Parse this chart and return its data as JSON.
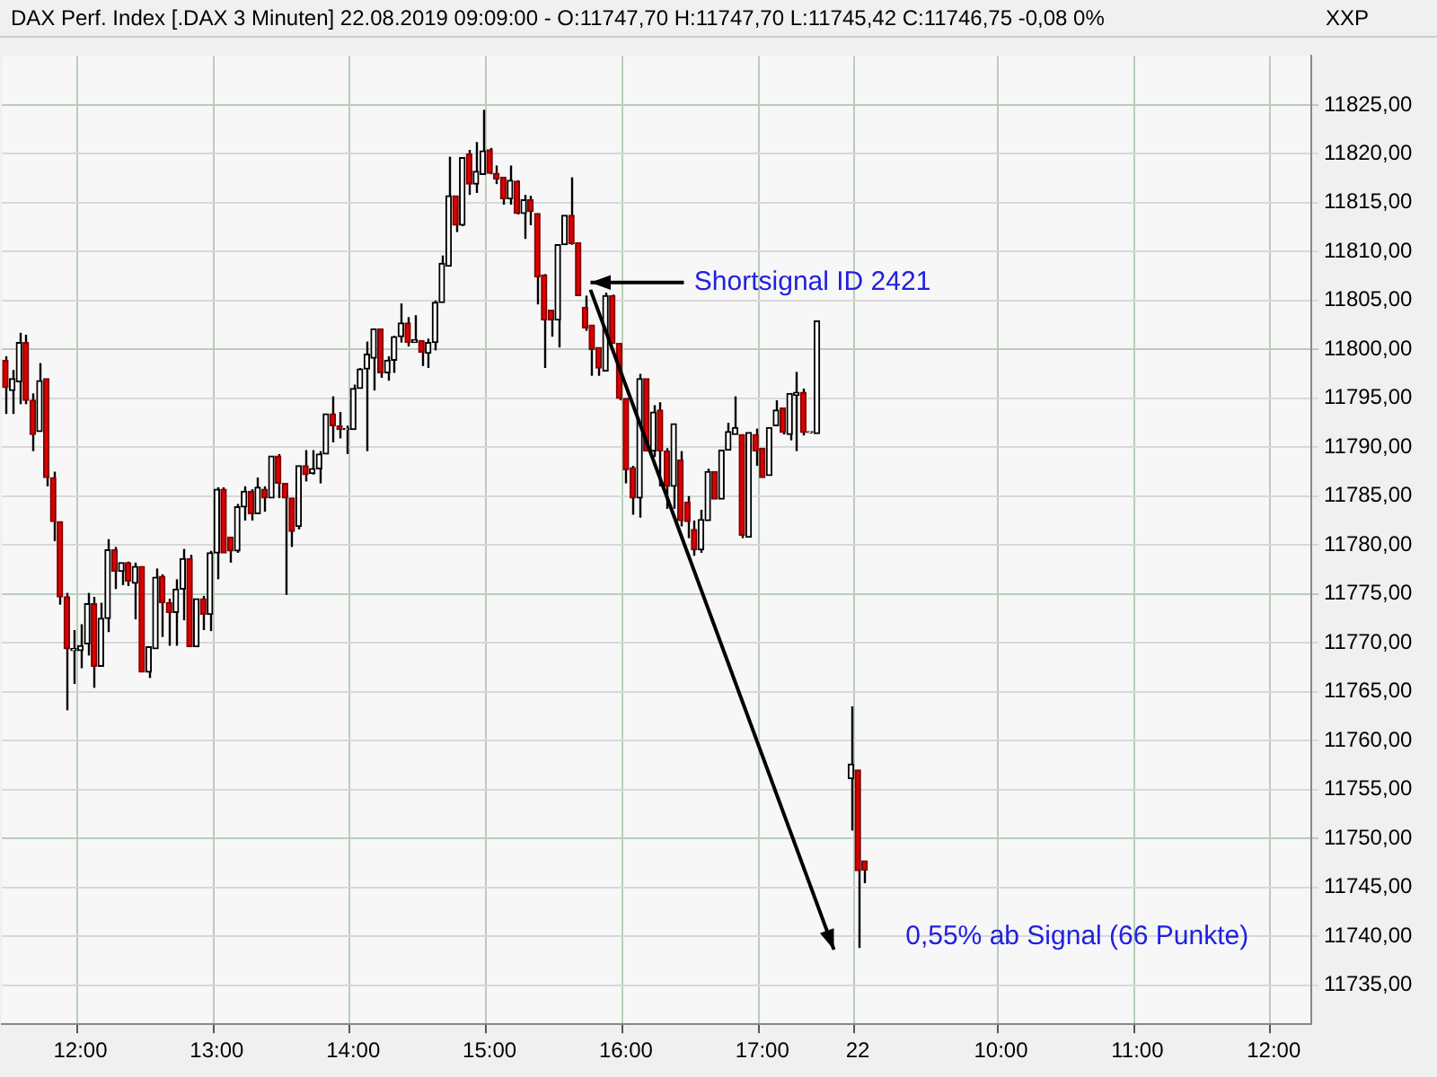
{
  "chart_data": {
    "type": "candlestick",
    "title": "DAX Perf. Index [.DAX  3 Minuten] 22.08.2019 09:09:00 - O:11747,70 H:11747,70 L:11745,42 C:11746,75 -0,08 0%",
    "categories": [
      null,
      null,
      null,
      null,
      null,
      null,
      null,
      null,
      null,
      null,
      null,
      "12:00",
      null,
      null,
      null,
      null,
      null,
      null,
      null,
      null,
      null,
      null,
      null,
      null,
      null,
      null,
      null,
      null,
      null,
      null,
      null,
      "13:00",
      null,
      null,
      null,
      null,
      null,
      null,
      null,
      null,
      null,
      null,
      null,
      null,
      null,
      null,
      null,
      null,
      null,
      null,
      null,
      "14:00",
      null,
      null,
      null,
      null,
      null,
      null,
      null,
      null,
      null,
      null,
      null,
      null,
      null,
      null,
      null,
      null,
      null,
      null,
      null,
      "15:00",
      null,
      null,
      null,
      null,
      null,
      null,
      null,
      null,
      null,
      null,
      null,
      null,
      null,
      null,
      null,
      null,
      null,
      null,
      null,
      "16:00",
      null,
      null,
      null,
      null,
      null,
      null,
      null,
      null,
      null,
      null,
      null,
      null,
      null,
      null,
      null,
      null,
      null,
      null,
      null,
      "17:00",
      null,
      null,
      null,
      null,
      null,
      null,
      null,
      null,
      null,
      null,
      null,
      null,
      null,
      "22",
      null,
      null,
      null,
      null,
      null,
      null,
      null,
      null,
      null,
      null,
      null,
      null,
      null,
      null,
      null,
      null,
      null,
      null,
      null,
      null,
      "10:00",
      null,
      null,
      null,
      null,
      null,
      null,
      null,
      null,
      null,
      null,
      null,
      null,
      null,
      null,
      null,
      null,
      null,
      null,
      null,
      "11:00",
      null,
      null,
      null,
      null,
      null,
      null,
      null,
      null,
      null,
      null,
      null,
      null,
      null,
      null,
      null,
      null,
      null,
      null,
      null,
      "12:00",
      null,
      null,
      null,
      null,
      null
    ],
    "ohlc": [
      [
        11798.9,
        11799.3,
        11793.4,
        11796.1
      ],
      [
        11795.8,
        11797.9,
        11793.4,
        11797.0
      ],
      [
        11796.7,
        11801.7,
        11794.4,
        11800.7
      ],
      [
        11800.7,
        11801.5,
        11794.4,
        11794.8
      ],
      [
        11794.8,
        11795.5,
        11789.6,
        11791.3
      ],
      [
        11791.6,
        11798.6,
        11791.6,
        11796.8
      ],
      [
        11797.0,
        11797.0,
        11786.0,
        11786.9
      ],
      [
        11786.9,
        11787.5,
        11780.4,
        11782.4
      ],
      [
        11782.4,
        11782.4,
        11773.9,
        11774.7
      ],
      [
        11774.7,
        11775.1,
        11763.1,
        11769.4
      ],
      [
        11769.2,
        11771.3,
        11765.8,
        11769.4
      ],
      [
        11769.2,
        11771.9,
        11767.4,
        11769.7
      ],
      [
        11769.9,
        11775.1,
        11768.7,
        11774.0
      ],
      [
        11774.0,
        11774.7,
        11765.4,
        11767.6
      ],
      [
        11767.6,
        11774.1,
        11767.6,
        11772.5
      ],
      [
        11772.5,
        11780.6,
        11771.1,
        11779.5
      ],
      [
        11779.5,
        11779.8,
        11775.5,
        11777.3
      ],
      [
        11777.3,
        11778.2,
        11775.9,
        11778.2
      ],
      [
        11778.2,
        11778.3,
        11775.8,
        11776.3
      ],
      [
        11776.1,
        11778.2,
        11772.4,
        11777.8
      ],
      [
        11777.8,
        11777.8,
        11767.0,
        11767.0
      ],
      [
        11767.0,
        11769.6,
        11766.4,
        11769.6
      ],
      [
        11769.4,
        11777.6,
        11769.4,
        11776.7
      ],
      [
        11776.8,
        11777.0,
        11770.6,
        11774.1
      ],
      [
        11774.1,
        11774.5,
        11769.7,
        11773.1
      ],
      [
        11773.1,
        11776.5,
        11769.7,
        11775.5
      ],
      [
        11775.5,
        11779.6,
        11772.3,
        11778.6
      ],
      [
        11778.6,
        11779.0,
        11769.6,
        11769.6
      ],
      [
        11769.6,
        11774.5,
        11769.6,
        11774.5
      ],
      [
        11774.5,
        11774.8,
        11771.3,
        11772.9
      ],
      [
        11772.9,
        11779.4,
        11771.2,
        11779.2
      ],
      [
        11779.2,
        11785.9,
        11776.5,
        11785.7
      ],
      [
        11785.7,
        11785.9,
        11779.2,
        11779.2
      ],
      [
        11780.8,
        11780.8,
        11778.2,
        11779.4
      ],
      [
        11779.4,
        11784.2,
        11779.2,
        11783.9
      ],
      [
        11783.9,
        11786.0,
        11782.5,
        11785.5
      ],
      [
        11785.5,
        11785.7,
        11782.5,
        11783.2
      ],
      [
        11783.2,
        11786.9,
        11783.2,
        11785.9
      ],
      [
        11785.7,
        11786.0,
        11783.4,
        11784.8
      ],
      [
        11784.8,
        11789.1,
        11784.8,
        11789.1
      ],
      [
        11789.1,
        11789.3,
        11784.8,
        11786.3
      ],
      [
        11786.3,
        11786.3,
        11774.9,
        11784.8
      ],
      [
        11784.8,
        11784.8,
        11779.8,
        11781.4
      ],
      [
        11781.9,
        11788.1,
        11781.6,
        11788.1
      ],
      [
        11788.1,
        11789.7,
        11786.5,
        11787.2
      ],
      [
        11787.3,
        11789.7,
        11787.2,
        11787.8
      ],
      [
        11787.8,
        11789.6,
        11786.3,
        11789.3
      ],
      [
        11789.3,
        11793.4,
        11789.3,
        11793.4
      ],
      [
        11793.4,
        11795.2,
        11790.5,
        11792.2
      ],
      [
        11792.2,
        11793.6,
        11790.9,
        11791.8
      ],
      [
        11791.8,
        11792.2,
        11789.3,
        11791.9
      ],
      [
        11791.8,
        11796.4,
        11791.8,
        11796.0
      ],
      [
        11796.0,
        11798.1,
        11796.0,
        11798.0
      ],
      [
        11798.0,
        11800.8,
        11789.6,
        11799.5
      ],
      [
        11799.1,
        11802.1,
        11795.8,
        11802.1
      ],
      [
        11802.1,
        11802.1,
        11797.1,
        11797.6
      ],
      [
        11797.6,
        11799.3,
        11796.8,
        11798.9
      ],
      [
        11798.9,
        11801.4,
        11797.6,
        11801.3
      ],
      [
        11801.3,
        11804.7,
        11800.7,
        11802.7
      ],
      [
        11802.7,
        11803.3,
        11800.3,
        11800.7
      ],
      [
        11800.7,
        11803.5,
        11800.7,
        11801.0
      ],
      [
        11800.9,
        11800.9,
        11798.3,
        11799.7
      ],
      [
        11799.6,
        11801.1,
        11798.1,
        11800.7
      ],
      [
        11800.7,
        11805.0,
        11799.9,
        11804.8
      ],
      [
        11804.8,
        11809.6,
        11804.8,
        11808.8
      ],
      [
        11808.5,
        11819.7,
        11808.5,
        11815.7
      ],
      [
        11815.7,
        11815.7,
        11812.0,
        11812.7
      ],
      [
        11812.7,
        11819.6,
        11812.6,
        11819.6
      ],
      [
        11820.0,
        11820.4,
        11815.8,
        11816.9
      ],
      [
        11816.9,
        11821.2,
        11816.0,
        11818.2
      ],
      [
        11817.9,
        11824.5,
        11817.9,
        11820.3
      ],
      [
        11820.4,
        11820.6,
        11817.9,
        11818.0
      ],
      [
        11818.0,
        11818.8,
        11816.9,
        11817.4
      ],
      [
        11817.6,
        11817.6,
        11814.8,
        11815.4
      ],
      [
        11815.4,
        11818.8,
        11814.8,
        11817.3
      ],
      [
        11817.2,
        11817.3,
        11813.8,
        11813.9
      ],
      [
        11813.9,
        11815.8,
        11811.3,
        11815.3
      ],
      [
        11815.3,
        11815.7,
        11812.7,
        11814.1
      ],
      [
        11813.9,
        11813.9,
        11804.6,
        11807.4
      ],
      [
        11807.6,
        11807.7,
        11798.1,
        11803.0
      ],
      [
        11804.0,
        11804.0,
        11801.3,
        11803.0
      ],
      [
        11803.0,
        11810.7,
        11800.2,
        11810.7
      ],
      [
        11810.7,
        11813.7,
        11810.7,
        11813.7
      ],
      [
        11813.7,
        11817.6,
        11810.7,
        11810.8
      ],
      [
        11810.9,
        11810.9,
        11805.5,
        11805.5
      ],
      [
        11804.3,
        11805.5,
        11801.9,
        11802.2
      ],
      [
        11802.5,
        11802.5,
        11797.3,
        11800.0
      ],
      [
        11800.2,
        11800.2,
        11797.3,
        11798.1
      ],
      [
        11797.8,
        11805.8,
        11797.8,
        11805.5
      ],
      [
        11805.5,
        11805.6,
        11800.6,
        11800.6
      ],
      [
        11800.6,
        11800.6,
        11794.8,
        11795.0
      ],
      [
        11795.0,
        11795.0,
        11786.3,
        11787.7
      ],
      [
        11787.9,
        11788.1,
        11783.1,
        11784.8
      ],
      [
        11784.8,
        11797.5,
        11782.8,
        11797.0
      ],
      [
        11797.0,
        11797.0,
        11789.6,
        11789.6
      ],
      [
        11789.6,
        11794.3,
        11789.0,
        11793.6
      ],
      [
        11793.8,
        11794.6,
        11786.0,
        11789.6
      ],
      [
        11789.6,
        11789.9,
        11783.7,
        11786.0
      ],
      [
        11786.0,
        11792.4,
        11783.7,
        11792.4
      ],
      [
        11788.7,
        11789.6,
        11781.9,
        11782.5
      ],
      [
        11784.4,
        11785.0,
        11780.7,
        11782.4
      ],
      [
        11781.6,
        11782.5,
        11778.9,
        11779.5
      ],
      [
        11779.5,
        11783.6,
        11779.2,
        11782.6
      ],
      [
        11782.5,
        11787.8,
        11782.5,
        11787.5
      ],
      [
        11787.5,
        11787.5,
        11784.7,
        11784.7
      ],
      [
        11784.7,
        11789.7,
        11784.7,
        11789.7
      ],
      [
        11789.7,
        11792.5,
        11789.7,
        11791.6
      ],
      [
        11791.3,
        11795.2,
        11791.3,
        11792.0
      ],
      [
        11791.3,
        11791.3,
        11780.7,
        11781.0
      ],
      [
        11780.8,
        11791.5,
        11780.8,
        11791.5
      ],
      [
        11791.3,
        11791.9,
        11788.1,
        11789.6
      ],
      [
        11789.9,
        11789.9,
        11786.9,
        11786.9
      ],
      [
        11787.1,
        11792.0,
        11787.1,
        11792.0
      ],
      [
        11792.2,
        11794.8,
        11792.2,
        11793.8
      ],
      [
        11794.0,
        11794.0,
        11791.3,
        11791.5
      ],
      [
        11791.3,
        11795.5,
        11790.7,
        11795.5
      ],
      [
        11795.3,
        11797.7,
        11789.6,
        11795.6
      ],
      [
        11795.6,
        11796.0,
        11791.2,
        11791.5
      ],
      [
        11791.5,
        11791.6,
        11791.4,
        11791.6
      ],
      [
        11791.4,
        11802.9,
        11791.4,
        11802.9
      ],
      null,
      null,
      null,
      null,
      [
        11756.1,
        11763.5,
        11750.8,
        11757.6
      ],
      [
        11757.0,
        11757.0,
        11738.8,
        11746.7
      ],
      [
        11747.7,
        11747.7,
        11745.42,
        11746.75
      ],
      null,
      null,
      null,
      null,
      null,
      null,
      null,
      null,
      null,
      null,
      null,
      null,
      null,
      null,
      null,
      null,
      null,
      null,
      null,
      null,
      null,
      null,
      null,
      null,
      null,
      null,
      null,
      null,
      null,
      null,
      null,
      null,
      null,
      null,
      null,
      null,
      null,
      null,
      null,
      null,
      null,
      null,
      null,
      null,
      null,
      null,
      null,
      null,
      null,
      null,
      null,
      null,
      null,
      null,
      null,
      null,
      null,
      null,
      null,
      null,
      null,
      null,
      null,
      null,
      null
    ],
    "ylim": [
      11731,
      11830
    ],
    "yticks": [
      {
        "value": 11735,
        "label": "11735,00"
      },
      {
        "value": 11740,
        "label": "11740,00"
      },
      {
        "value": 11745,
        "label": "11745,00"
      },
      {
        "value": 11750,
        "label": "11750,00"
      },
      {
        "value": 11755,
        "label": "11755,00"
      },
      {
        "value": 11760,
        "label": "11760,00"
      },
      {
        "value": 11765,
        "label": "11765,00"
      },
      {
        "value": 11770,
        "label": "11770,00"
      },
      {
        "value": 11775,
        "label": "11775,00"
      },
      {
        "value": 11780,
        "label": "11780,00"
      },
      {
        "value": 11785,
        "label": "11785,00"
      },
      {
        "value": 11790,
        "label": "11790,00"
      },
      {
        "value": 11795,
        "label": "11795,00"
      },
      {
        "value": 11800,
        "label": "11800,00"
      },
      {
        "value": 11805,
        "label": "11805,00"
      },
      {
        "value": 11810,
        "label": "11810,00"
      },
      {
        "value": 11815,
        "label": "11815,00"
      },
      {
        "value": 11820,
        "label": "11820,00"
      },
      {
        "value": 11825,
        "label": "11825,00"
      }
    ],
    "grid": true,
    "annotations": [
      "XXP",
      "Shortsignal ID 2421",
      "0,55% ab Signal (66 Punkte)"
    ]
  }
}
